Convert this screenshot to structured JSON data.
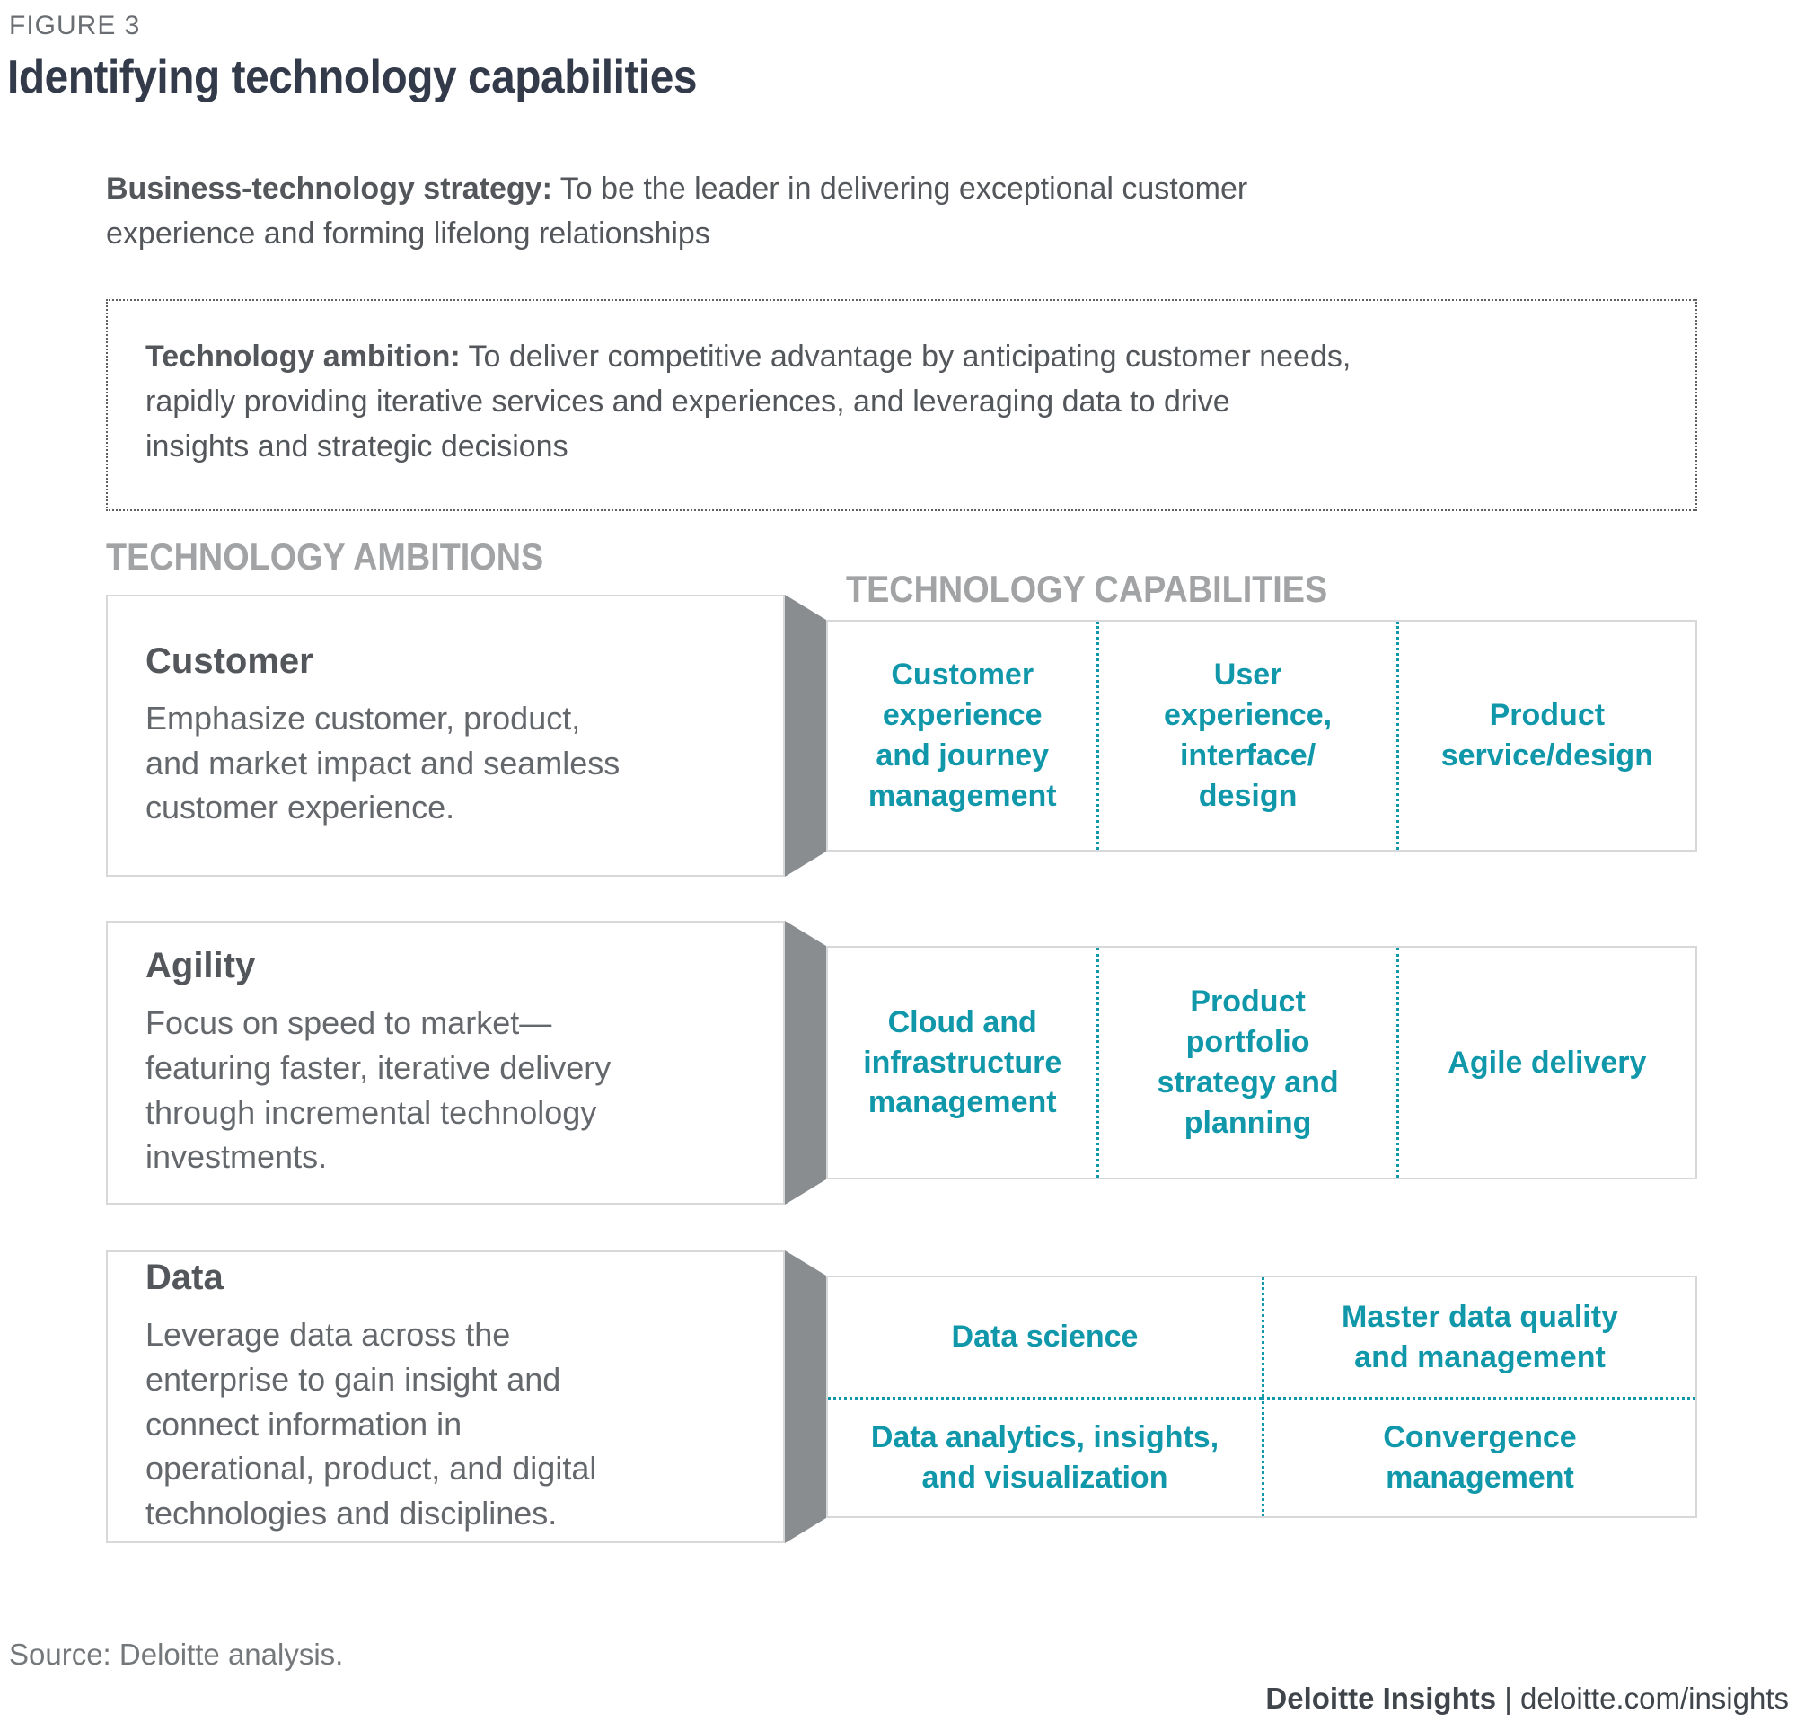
{
  "figure": {
    "label": "FIGURE 3",
    "title": "Identifying technology capabilities"
  },
  "strategy": {
    "label": "Business-technology strategy:",
    "text": "To be the leader in delivering exceptional customer\nexperience and forming lifelong relationships"
  },
  "ambition": {
    "label": "Technology ambition:",
    "text": "To deliver competitive advantage by anticipating customer needs,\nrapidly providing iterative services and experiences, and leveraging data to drive\ninsights and strategic decisions"
  },
  "headers": {
    "ambitions": "TECHNOLOGY AMBITIONS",
    "capabilities": "TECHNOLOGY CAPABILITIES"
  },
  "rows": [
    {
      "heading": "Customer",
      "description": "Emphasize customer, product,\nand market impact and seamless\ncustomer experience.",
      "capabilities": [
        "Customer\nexperience\nand journey\nmanagement",
        "User\nexperience,\ninterface/\ndesign",
        "Product\nservice/design"
      ]
    },
    {
      "heading": "Agility",
      "description": "Focus on speed to market—\nfeaturing faster, iterative delivery\nthrough incremental technology\ninvestments.",
      "capabilities": [
        "Cloud and\ninfrastructure\nmanagement",
        "Product\nportfolio\nstrategy and\nplanning",
        "Agile delivery"
      ]
    },
    {
      "heading": "Data",
      "description": "Leverage data across the\nenterprise to gain insight and\nconnect information in\noperational, product, and digital\ntechnologies and disciplines.",
      "capabilities": [
        "Data science",
        "Master data quality\nand management",
        "Data analytics, insights,\nand visualization",
        "Convergence\nmanagement"
      ]
    }
  ],
  "source": "Source: Deloitte analysis.",
  "footer": {
    "brand": "Deloitte Insights",
    "separator": "|",
    "link": "deloitte.com/insights"
  },
  "colors": {
    "accent_teal": "#1097AA",
    "connector_gray": "#8A8D90",
    "title_dark": "#333B4B",
    "text_gray": "#53565A",
    "header_gray": "#A1A3A5",
    "border_gray": "#D7D8D9"
  }
}
